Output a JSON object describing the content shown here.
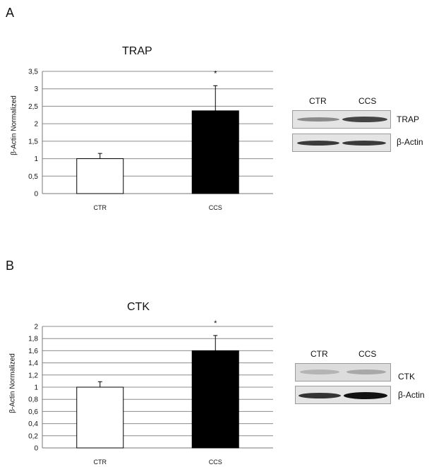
{
  "chart_data": [
    {
      "panel": "A",
      "type": "bar",
      "title": "TRAP",
      "ylabel": "β-Actin Normalized",
      "categories": [
        "CTR",
        "CCS"
      ],
      "values": [
        1.0,
        2.37
      ],
      "error": [
        0.15,
        0.72
      ],
      "significance": [
        "",
        "*"
      ],
      "ylim": [
        0,
        3.5
      ],
      "yticks": [
        "0",
        "0,5",
        "1",
        "1,5",
        "2",
        "2,5",
        "3",
        "3,5"
      ],
      "ytick_values": [
        0,
        0.5,
        1,
        1.5,
        2,
        2.5,
        3,
        3.5
      ],
      "bar_colors": [
        "#ffffff",
        "#000000"
      ],
      "grid": true
    },
    {
      "panel": "B",
      "type": "bar",
      "title": "CTK",
      "ylabel": "β-Actin Normalized",
      "categories": [
        "CTR",
        "CCS"
      ],
      "values": [
        1.0,
        1.6
      ],
      "error": [
        0.09,
        0.25
      ],
      "significance": [
        "",
        "*"
      ],
      "ylim": [
        0,
        2
      ],
      "yticks": [
        "0",
        "0,2",
        "0,4",
        "0,6",
        "0,8",
        "1",
        "1,2",
        "1,4",
        "1,6",
        "1,8",
        "2"
      ],
      "ytick_values": [
        0,
        0.2,
        0.4,
        0.6,
        0.8,
        1,
        1.2,
        1.4,
        1.6,
        1.8,
        2
      ],
      "bar_colors": [
        "#ffffff",
        "#000000"
      ],
      "grid": true
    }
  ],
  "blots": [
    {
      "lanes": [
        "CTR",
        "CCS"
      ],
      "rows": [
        "TRAP",
        "β-Actin"
      ]
    },
    {
      "lanes": [
        "CTR",
        "CCS"
      ],
      "rows": [
        "CTK",
        "β-Actin"
      ]
    }
  ]
}
